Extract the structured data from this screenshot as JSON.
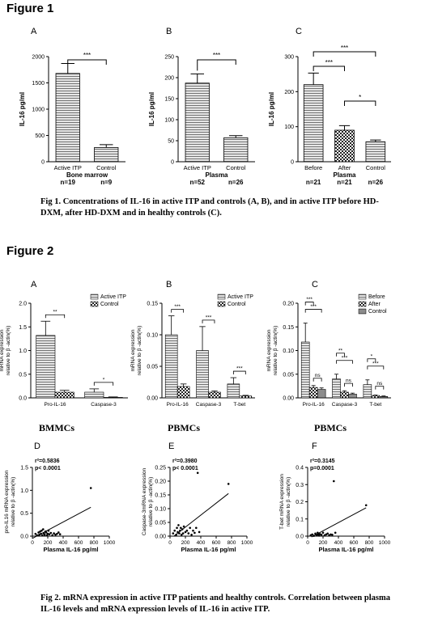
{
  "figure1": {
    "heading": "Figure 1",
    "caption": "Fig 1. Concentrations of IL-16 in active ITP and controls (A, B), and in active ITP before HD-DXM, after HD-DXM and in healthy controls (C)."
  },
  "figure2": {
    "heading": "Figure 2",
    "caption": "Fig 2. mRNA expression in active ITP patients and healthy controls. Correlation between plasma IL-16 levels and mRNA expression levels of IL-16 in active ITP.",
    "row_labels": [
      "BMMCs",
      "PBMCs",
      "PBMCs"
    ]
  },
  "colors": {
    "bar_fill": "#d9d9d9",
    "line": "#000000"
  },
  "chart_data": [
    {
      "id": "fig1A",
      "panel": "A",
      "type": "bar",
      "categories": [
        "Active ITP",
        "Control"
      ],
      "category_n": [
        "n=19",
        "n=9"
      ],
      "values": [
        1680,
        270
      ],
      "errors": [
        190,
        55
      ],
      "patterns": [
        "hlines",
        "hlines"
      ],
      "ylabel": "IL-16 pg/ml",
      "xlabel": "Bone marrow",
      "ylim": [
        0,
        2000
      ],
      "yticks": [
        0,
        500,
        1000,
        1500,
        2000
      ],
      "significance": [
        {
          "from": 0,
          "to": 1,
          "label": "***"
        }
      ]
    },
    {
      "id": "fig1B",
      "panel": "B",
      "type": "bar",
      "categories": [
        "Active ITP",
        "Control"
      ],
      "category_n": [
        "n=52",
        "n=26"
      ],
      "values": [
        187,
        57
      ],
      "errors": [
        22,
        5
      ],
      "patterns": [
        "hlines",
        "hlines"
      ],
      "ylabel": "IL-16 pg/ml",
      "xlabel": "Plasma",
      "ylim": [
        0,
        250
      ],
      "yticks": [
        0,
        50,
        100,
        150,
        200,
        250
      ],
      "significance": [
        {
          "from": 0,
          "to": 1,
          "label": "***"
        }
      ]
    },
    {
      "id": "fig1C",
      "panel": "C",
      "type": "bar",
      "categories": [
        "Before",
        "After",
        "Control"
      ],
      "category_n": [
        "n=21",
        "n=21",
        "n=26"
      ],
      "values": [
        220,
        90,
        57
      ],
      "errors": [
        33,
        13,
        5
      ],
      "patterns": [
        "hlines",
        "check",
        "hlines"
      ],
      "ylabel": "IL-16 pg/ml",
      "xlabel": "Plasma",
      "ylim": [
        0,
        300
      ],
      "yticks": [
        0,
        100,
        200,
        300
      ],
      "significance": [
        {
          "from": 0,
          "to": 1,
          "label": "***"
        },
        {
          "from": 0,
          "to": 2,
          "label": "***"
        },
        {
          "from": 1,
          "to": 2,
          "label": "*"
        }
      ]
    },
    {
      "id": "fig2A",
      "panel": "A",
      "type": "bar",
      "categories": [
        "Pro-IL-16",
        "Caspase-3"
      ],
      "ylabel": "mRNA expression relative to β -actin(%)",
      "ylim": [
        0,
        2.0
      ],
      "yticks": [
        "0.0",
        "0.5",
        "1.0",
        "1.5",
        "2.0"
      ],
      "legend": [
        "Active ITP",
        "Control"
      ],
      "legend_position": "top-right",
      "series": [
        {
          "name": "Active ITP",
          "pattern": "hlines",
          "values": [
            1.32,
            0.12
          ],
          "errors": [
            0.3,
            0.07
          ]
        },
        {
          "name": "Control",
          "pattern": "check",
          "values": [
            0.12,
            0.01
          ],
          "errors": [
            0.04,
            0.01
          ]
        }
      ],
      "significance": [
        {
          "category": 0,
          "series": [
            0,
            1
          ],
          "label": "**"
        },
        {
          "category": 1,
          "series": [
            0,
            1
          ],
          "label": "*"
        }
      ]
    },
    {
      "id": "fig2B",
      "panel": "B",
      "type": "bar",
      "categories": [
        "Pro-IL-16",
        "Caspase-3",
        "T-bet"
      ],
      "ylabel": "mRNA expression relative to β -actin(%)",
      "ylim": [
        0,
        0.15
      ],
      "yticks": [
        "0.00",
        "0.05",
        "0.10",
        "0.15"
      ],
      "legend": [
        "Active ITP",
        "Control"
      ],
      "legend_position": "top-right",
      "series": [
        {
          "name": "Active ITP",
          "pattern": "hlines",
          "values": [
            0.1,
            0.075,
            0.022
          ],
          "errors": [
            0.03,
            0.038,
            0.01
          ]
        },
        {
          "name": "Control",
          "pattern": "check",
          "values": [
            0.018,
            0.009,
            0.003
          ],
          "errors": [
            0.004,
            0.002,
            0.001
          ]
        }
      ],
      "significance": [
        {
          "category": 0,
          "series": [
            0,
            1
          ],
          "label": "***"
        },
        {
          "category": 1,
          "series": [
            0,
            1
          ],
          "label": "***"
        },
        {
          "category": 2,
          "series": [
            0,
            1
          ],
          "label": "***"
        }
      ]
    },
    {
      "id": "fig2C",
      "panel": "C",
      "type": "bar",
      "categories": [
        "Pro-IL-16",
        "Caspase-3",
        "T-bet"
      ],
      "ylabel": "mRNA expression relative to β -actin(%)",
      "ylim": [
        0,
        0.2
      ],
      "yticks": [
        "0.00",
        "0.05",
        "0.10",
        "0.15",
        "0.20"
      ],
      "legend": [
        "Before",
        "After",
        "Control"
      ],
      "legend_position": "top-right",
      "series": [
        {
          "name": "Before",
          "pattern": "hlines",
          "values": [
            0.118,
            0.04,
            0.028
          ],
          "errors": [
            0.04,
            0.01,
            0.01
          ]
        },
        {
          "name": "After",
          "pattern": "check",
          "values": [
            0.022,
            0.012,
            0.005
          ],
          "errors": [
            0.004,
            0.003,
            0.001
          ]
        },
        {
          "name": "Control",
          "pattern": "dense",
          "values": [
            0.018,
            0.008,
            0.003
          ],
          "errors": [
            0.003,
            0.002,
            0.001
          ]
        }
      ],
      "significance": [
        {
          "category": 0,
          "series": [
            0,
            1
          ],
          "label": "***"
        },
        {
          "category": 0,
          "series": [
            0,
            2
          ],
          "label": "***"
        },
        {
          "category": 0,
          "series": [
            1,
            2
          ],
          "label": "ns"
        },
        {
          "category": 1,
          "series": [
            0,
            1
          ],
          "label": "**"
        },
        {
          "category": 1,
          "series": [
            0,
            2
          ],
          "label": "***"
        },
        {
          "category": 1,
          "series": [
            1,
            2
          ],
          "label": "ns"
        },
        {
          "category": 2,
          "series": [
            0,
            1
          ],
          "label": "*"
        },
        {
          "category": 2,
          "series": [
            0,
            2
          ],
          "label": "***"
        },
        {
          "category": 2,
          "series": [
            1,
            2
          ],
          "label": "ns"
        }
      ]
    },
    {
      "id": "fig2D",
      "panel": "D",
      "type": "scatter",
      "xlabel": "Plasma IL-16 pg/ml",
      "ylabel": "pro-IL16 mRNA expression relative to β -actin(%)",
      "xlim": [
        0,
        1000
      ],
      "xticks": [
        0,
        200,
        400,
        600,
        800,
        1000
      ],
      "ylim": [
        0,
        1.5
      ],
      "yticks": [
        "0.0",
        "0.5",
        "1.0",
        "1.5"
      ],
      "stats": [
        "r²=0.5836",
        "p< 0.0001"
      ],
      "points": [
        [
          40,
          0.05
        ],
        [
          60,
          0.02
        ],
        [
          80,
          0.08
        ],
        [
          90,
          0.03
        ],
        [
          100,
          0.1
        ],
        [
          110,
          0.05
        ],
        [
          120,
          0.12
        ],
        [
          130,
          0.02
        ],
        [
          140,
          0.15
        ],
        [
          150,
          0.06
        ],
        [
          160,
          0.03
        ],
        [
          170,
          0.1
        ],
        [
          180,
          0.08
        ],
        [
          190,
          0.02
        ],
        [
          200,
          0.05
        ],
        [
          210,
          0.12
        ],
        [
          220,
          0.04
        ],
        [
          240,
          0.07
        ],
        [
          260,
          0.02
        ],
        [
          280,
          0.06
        ],
        [
          300,
          0.03
        ],
        [
          320,
          0.05
        ],
        [
          340,
          0.08
        ],
        [
          360,
          0.04
        ],
        [
          760,
          1.05
        ]
      ],
      "fit": [
        [
          0,
          -0.05
        ],
        [
          760,
          0.63
        ]
      ]
    },
    {
      "id": "fig2E",
      "panel": "E",
      "type": "scatter",
      "xlabel": "Plasma IL-16 pg/ml",
      "ylabel": "Caspase-3mRNA expression relative to β -actin(%)",
      "xlim": [
        0,
        1000
      ],
      "xticks": [
        0,
        200,
        400,
        600,
        800,
        1000
      ],
      "ylim": [
        0,
        0.25
      ],
      "yticks": [
        "0.00",
        "0.05",
        "0.10",
        "0.15",
        "0.20",
        "0.25"
      ],
      "stats": [
        "r²=0.3980",
        "p< 0.0001"
      ],
      "points": [
        [
          40,
          0.01
        ],
        [
          60,
          0.02
        ],
        [
          80,
          0.005
        ],
        [
          90,
          0.03
        ],
        [
          100,
          0.015
        ],
        [
          110,
          0.04
        ],
        [
          120,
          0.01
        ],
        [
          130,
          0.02
        ],
        [
          140,
          0.03
        ],
        [
          150,
          0.005
        ],
        [
          160,
          0.025
        ],
        [
          170,
          0.01
        ],
        [
          180,
          0.035
        ],
        [
          200,
          0.015
        ],
        [
          220,
          0.02
        ],
        [
          240,
          0.01
        ],
        [
          260,
          0.03
        ],
        [
          280,
          0.005
        ],
        [
          300,
          0.02
        ],
        [
          320,
          0.012
        ],
        [
          340,
          0.03
        ],
        [
          360,
          0.23
        ],
        [
          380,
          0.015
        ],
        [
          760,
          0.19
        ]
      ],
      "fit": [
        [
          50,
          0.0
        ],
        [
          760,
          0.155
        ]
      ]
    },
    {
      "id": "fig2F",
      "panel": "F",
      "type": "scatter",
      "xlabel": "Plasma IL-16 pg/ml",
      "ylabel": "T-bet mRNA expression relative to β -actin(%)",
      "xlim": [
        0,
        1000
      ],
      "xticks": [
        0,
        200,
        400,
        600,
        800,
        1000
      ],
      "ylim": [
        0,
        0.4
      ],
      "yticks": [
        "0.0",
        "0.1",
        "0.2",
        "0.3",
        "0.4"
      ],
      "stats": [
        "r²=0.3145",
        "p=0.0001"
      ],
      "points": [
        [
          40,
          0.005
        ],
        [
          60,
          0.01
        ],
        [
          80,
          0.002
        ],
        [
          100,
          0.015
        ],
        [
          120,
          0.005
        ],
        [
          130,
          0.02
        ],
        [
          140,
          0.01
        ],
        [
          150,
          0.003
        ],
        [
          160,
          0.012
        ],
        [
          180,
          0.008
        ],
        [
          200,
          0.02
        ],
        [
          220,
          0.005
        ],
        [
          240,
          0.01
        ],
        [
          260,
          0.015
        ],
        [
          280,
          0.005
        ],
        [
          300,
          0.01
        ],
        [
          320,
          0.008
        ],
        [
          340,
          0.32
        ],
        [
          360,
          0.02
        ],
        [
          760,
          0.18
        ]
      ],
      "fit": [
        [
          50,
          -0.005
        ],
        [
          760,
          0.165
        ]
      ]
    }
  ]
}
